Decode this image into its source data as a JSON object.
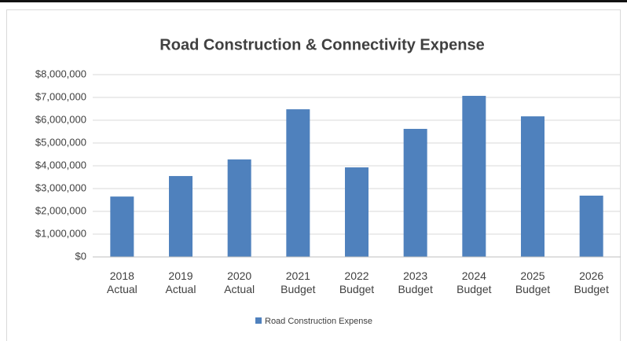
{
  "chart_data": {
    "type": "bar",
    "title": "Road Construction & Connectivity Expense",
    "categories": [
      "2018 Actual",
      "2019 Actual",
      "2020 Actual",
      "2021 Budget",
      "2022 Budget",
      "2023 Budget",
      "2024 Budget",
      "2025 Budget",
      "2026 Budget"
    ],
    "series": [
      {
        "name": "Road Construction Expense",
        "color": "#4f81bd",
        "values": [
          2650000,
          3550000,
          4280000,
          6480000,
          3930000,
          5620000,
          7070000,
          6170000,
          2690000
        ]
      }
    ],
    "ylim": [
      0,
      8000000
    ],
    "yticks": [
      {
        "value": 0,
        "label": "$0"
      },
      {
        "value": 1000000,
        "label": "$1,000,000"
      },
      {
        "value": 2000000,
        "label": "$2,000,000"
      },
      {
        "value": 3000000,
        "label": "$3,000,000"
      },
      {
        "value": 4000000,
        "label": "$4,000,000"
      },
      {
        "value": 5000000,
        "label": "$5,000,000"
      },
      {
        "value": 6000000,
        "label": "$6,000,000"
      },
      {
        "value": 7000000,
        "label": "$7,000,000"
      },
      {
        "value": 8000000,
        "label": "$8,000,000"
      }
    ],
    "grid": true,
    "legend": "bottom"
  }
}
